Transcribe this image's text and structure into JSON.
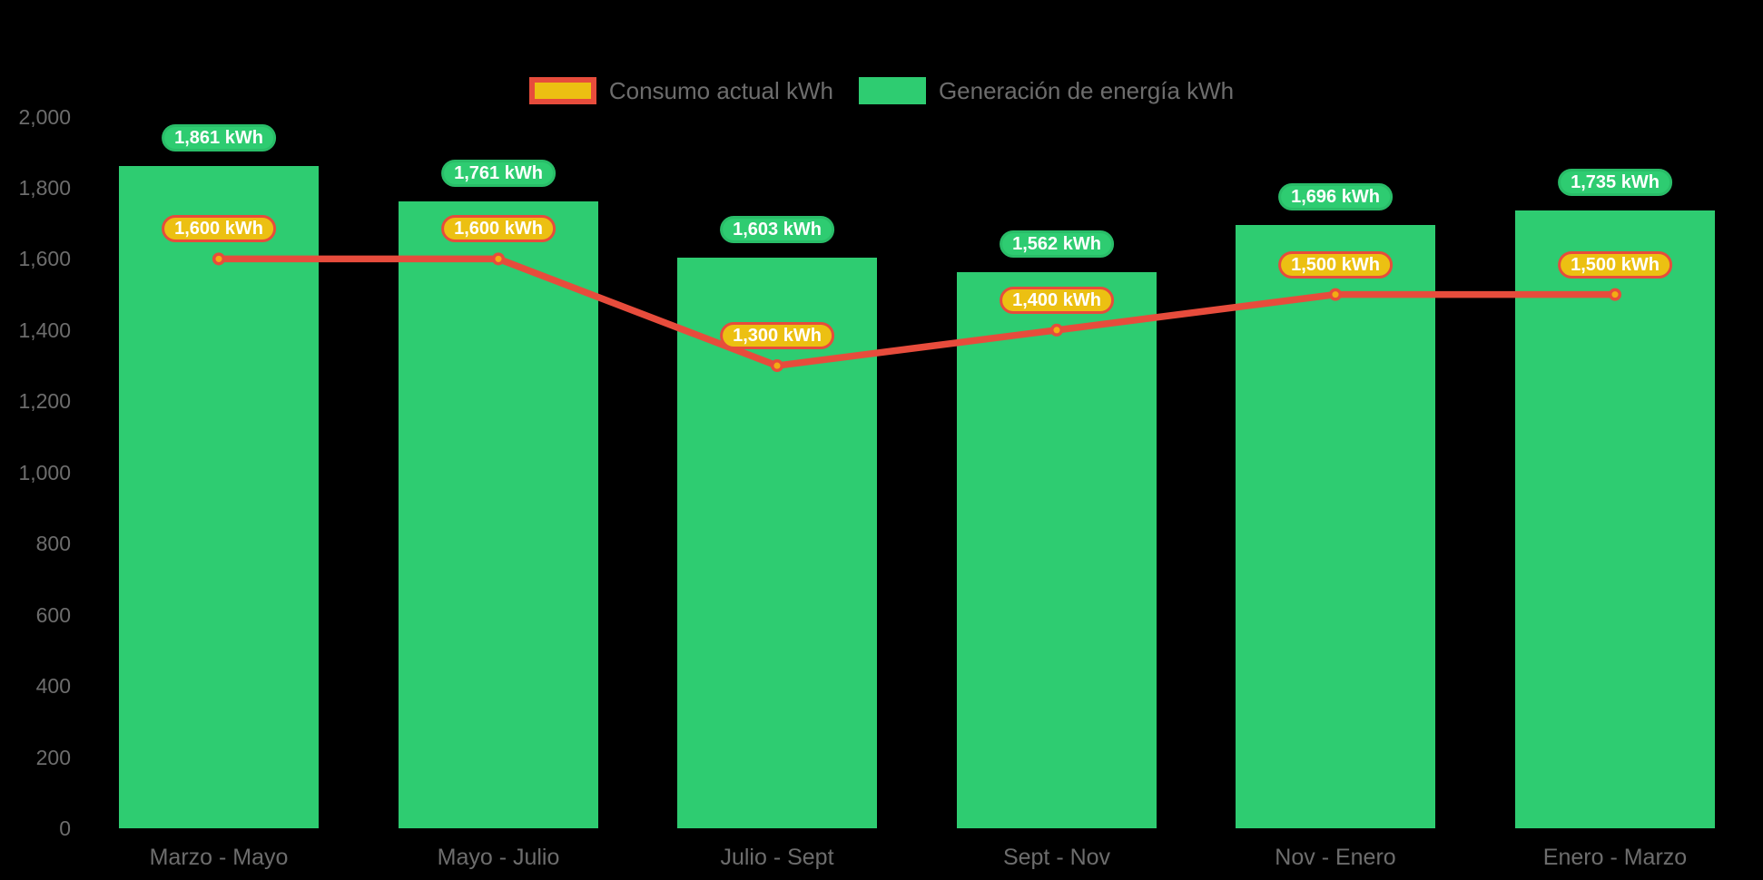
{
  "legend": {
    "items": [
      {
        "id": "consumo",
        "label": "Consumo actual kWh",
        "swatch": "line-series"
      },
      {
        "id": "generacion",
        "label": "Generación de energía kWh",
        "swatch": "bar-series"
      }
    ]
  },
  "chart_data": {
    "type": "bar+line combo",
    "background": "#000000",
    "axis_text_color": "#6d6d6d",
    "grid": false,
    "legend_position": "top-center",
    "ylim": [
      0,
      2000
    ],
    "y_ticks": [
      {
        "value": 0,
        "label": "0"
      },
      {
        "value": 200,
        "label": "200"
      },
      {
        "value": 400,
        "label": "400"
      },
      {
        "value": 600,
        "label": "600"
      },
      {
        "value": 800,
        "label": "800"
      },
      {
        "value": 1000,
        "label": "1,000"
      },
      {
        "value": 1200,
        "label": "1,200"
      },
      {
        "value": 1400,
        "label": "1,400"
      },
      {
        "value": 1600,
        "label": "1,600"
      },
      {
        "value": 1800,
        "label": "1,800"
      },
      {
        "value": 2000,
        "label": "2,000"
      }
    ],
    "categories": [
      "Marzo - Mayo",
      "Mayo - Julio",
      "Julio - Sept",
      "Sept - Nov",
      "Nov - Enero",
      "Enero - Marzo"
    ],
    "series": [
      {
        "name": "Generación de energía kWh",
        "type": "bar",
        "color": "#2ecc71",
        "values": [
          1861,
          1761,
          1603,
          1562,
          1696,
          1735
        ],
        "labels": [
          "1,861 kWh",
          "1,761 kWh",
          "1,603 kWh",
          "1,562 kWh",
          "1,696 kWh",
          "1,735 kWh"
        ],
        "label_badge": {
          "fill": "#2ecc71",
          "border": "#29bd68",
          "text_color": "#ffffff"
        }
      },
      {
        "name": "Consumo actual kWh",
        "type": "line",
        "color": "#e74c3c",
        "marker_color": "#f3ac13",
        "values": [
          1600,
          1600,
          1300,
          1400,
          1500,
          1500
        ],
        "labels": [
          "1,600 kWh",
          "1,600 kWh",
          "1,300 kWh",
          "1,400 kWh",
          "1,500 kWh",
          "1,500 kWh"
        ],
        "label_badge": {
          "fill": "#ecc012",
          "border": "#e74c3c",
          "text_color": "#ffffff"
        }
      }
    ]
  }
}
